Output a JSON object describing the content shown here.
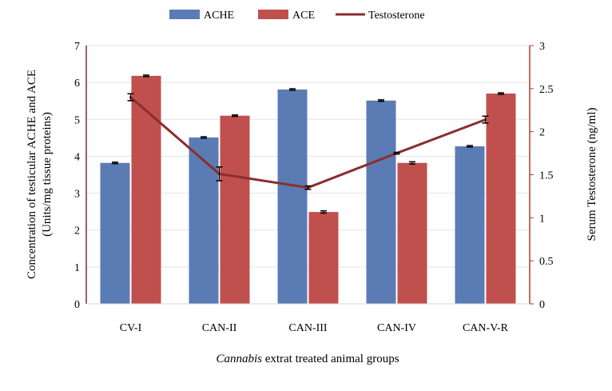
{
  "chart_data": {
    "type": "bar",
    "categories": [
      "CV-I",
      "CAN-II",
      "CAN-III",
      "CAN-IV",
      "CAN-V-R"
    ],
    "series": [
      {
        "name": "ACHE",
        "kind": "bar",
        "axis": "left",
        "color": "#5b7bb5",
        "values": [
          3.82,
          4.51,
          5.81,
          5.51,
          4.27
        ],
        "errors": [
          0.02,
          0.02,
          0.02,
          0.02,
          0.02
        ]
      },
      {
        "name": "ACE",
        "kind": "bar",
        "axis": "left",
        "color": "#c0504d",
        "values": [
          6.18,
          5.1,
          2.49,
          3.82,
          5.7
        ],
        "errors": [
          0.02,
          0.02,
          0.03,
          0.03,
          0.02
        ]
      },
      {
        "name": "Testosterone",
        "kind": "line",
        "axis": "right",
        "color": "#8b2e2e",
        "values": [
          2.4,
          1.51,
          1.35,
          1.75,
          2.14
        ],
        "errors": [
          0.04,
          0.08,
          0.02,
          0.01,
          0.04
        ]
      }
    ],
    "ylabel_left": [
      "Concentration of testicular ACHE and ACE",
      "(Units/mg tissue proteins)"
    ],
    "ylabel_right": "Serum Testosterone (ng/ml)",
    "xlabel_italic": "Cannabis",
    "xlabel_rest": " extrat treated animal groups",
    "ylim_left": [
      0,
      7
    ],
    "yticks_left": [
      "0",
      "1",
      "2",
      "3",
      "4",
      "5",
      "6",
      "7"
    ],
    "ylim_right": [
      0,
      3
    ],
    "yticks_right": [
      "0",
      "0.5",
      "1",
      "1.5",
      "2",
      "2.5",
      "3"
    ],
    "grid": true,
    "legend_position": "top"
  }
}
